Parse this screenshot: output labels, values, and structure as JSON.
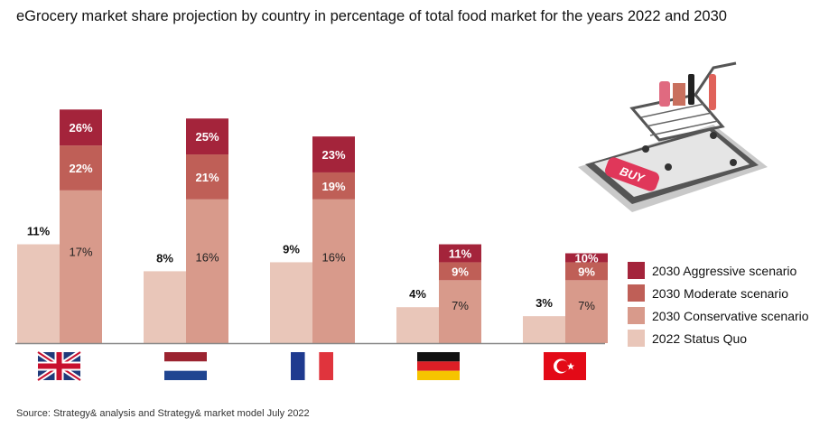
{
  "chart_data": {
    "type": "bar",
    "title": "eGrocery market share projection by country in percentage of total food market for the years 2022 and 2030",
    "categories": [
      "United Kingdom",
      "Netherlands",
      "France",
      "Germany",
      "Turkey"
    ],
    "series": [
      {
        "name": "2022 Status Quo",
        "values": [
          11,
          8,
          9,
          4,
          3
        ],
        "labels": [
          "11%",
          "8%",
          "9%",
          "4%",
          "3%"
        ],
        "color": "#e9c6b9"
      },
      {
        "name": "2030 Conservative scenario",
        "values": [
          17,
          16,
          16,
          7,
          7
        ],
        "labels": [
          "17%",
          "16%",
          "16%",
          "7%",
          "7%"
        ],
        "color": "#d89a8b"
      },
      {
        "name": "2030 Moderate scenario",
        "values": [
          22,
          21,
          19,
          9,
          9
        ],
        "labels": [
          "22%",
          "21%",
          "19%",
          "9%",
          "9%"
        ],
        "color": "#bf5f57"
      },
      {
        "name": "2030 Aggressive scenario",
        "values": [
          26,
          25,
          23,
          11,
          10
        ],
        "labels": [
          "26%",
          "25%",
          "23%",
          "11%",
          "10%"
        ],
        "color": "#a4243b"
      }
    ],
    "legend_order": [
      "2030 Aggressive scenario",
      "2030 Moderate scenario",
      "2030 Conservative scenario",
      "2022 Status Quo"
    ],
    "legend_position": "right",
    "ylim": [
      0,
      26
    ],
    "grid": false,
    "xlabel": "",
    "ylabel": ""
  },
  "illustration": {
    "button_text": "BUY"
  },
  "source": "Source: Strategy& analysis and Strategy& market model July 2022"
}
